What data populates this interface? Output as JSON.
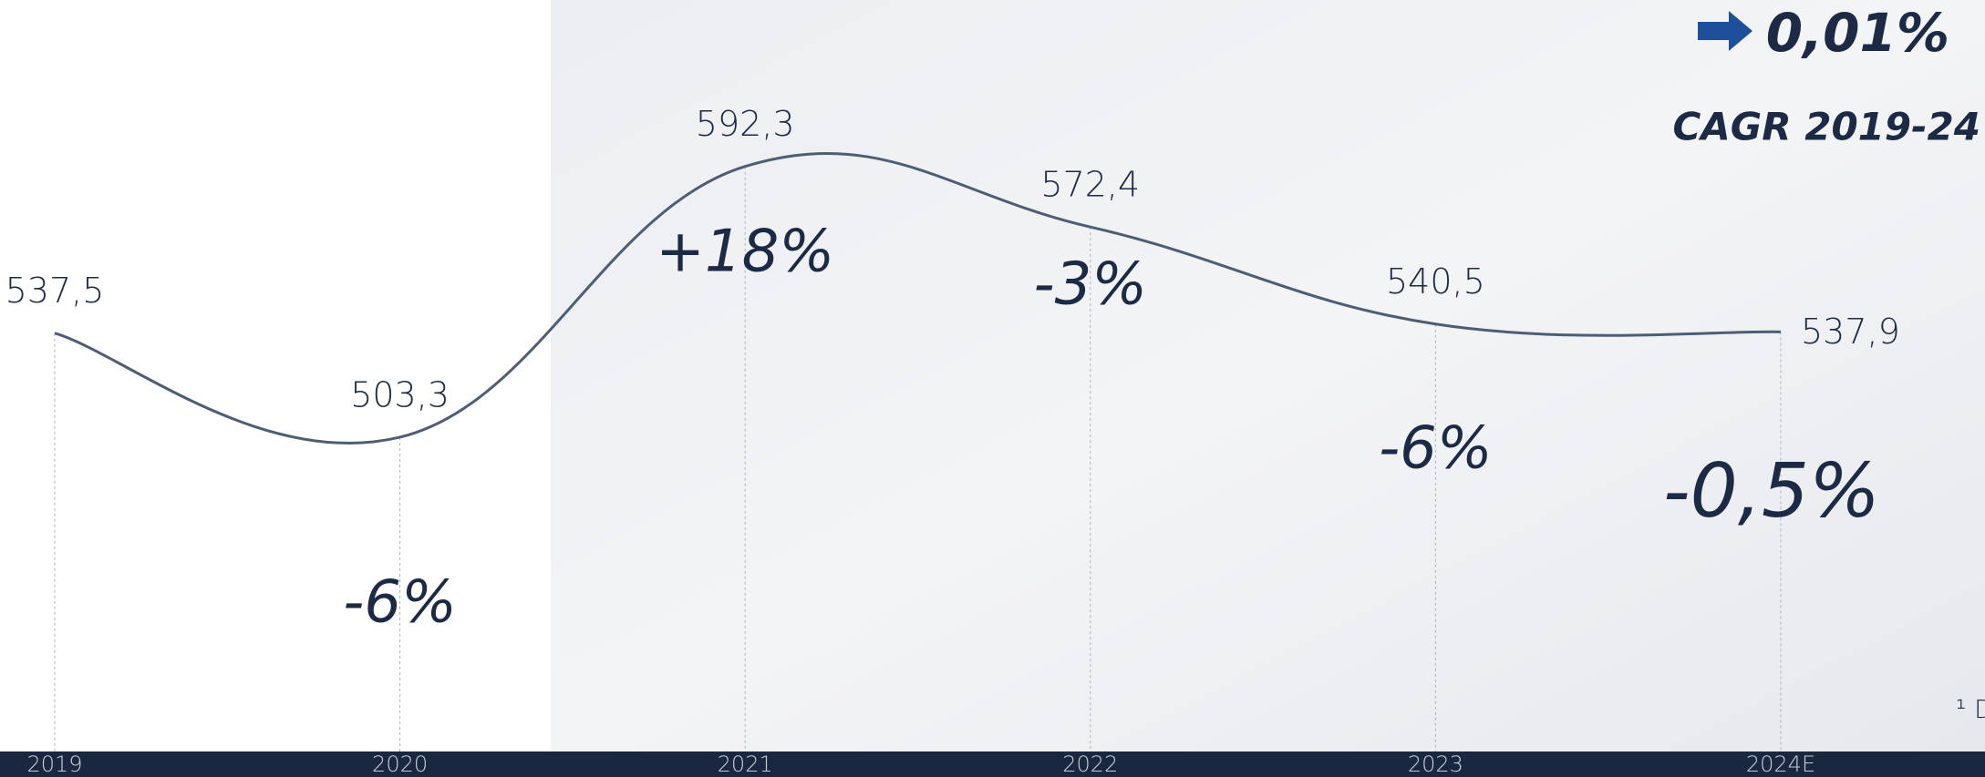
{
  "chart_data": {
    "type": "line",
    "categories": [
      "2019",
      "2020",
      "2021",
      "2022",
      "2023",
      "2024E"
    ],
    "values": [
      537.5,
      503.3,
      592.3,
      572.4,
      540.5,
      537.9
    ],
    "value_labels": [
      "537,5",
      "503,3",
      "592,3",
      "572,4",
      "540,5",
      "537,9"
    ],
    "change_labels": [
      null,
      "-6%",
      "+18%",
      "-3%",
      "-6%",
      "-0,5%"
    ],
    "color": "#4d5e74",
    "ylim": [
      400,
      647
    ],
    "cagr_value": "0,01%",
    "cagr_label": "CAGR 2019-24",
    "footnote": "¹ D"
  }
}
